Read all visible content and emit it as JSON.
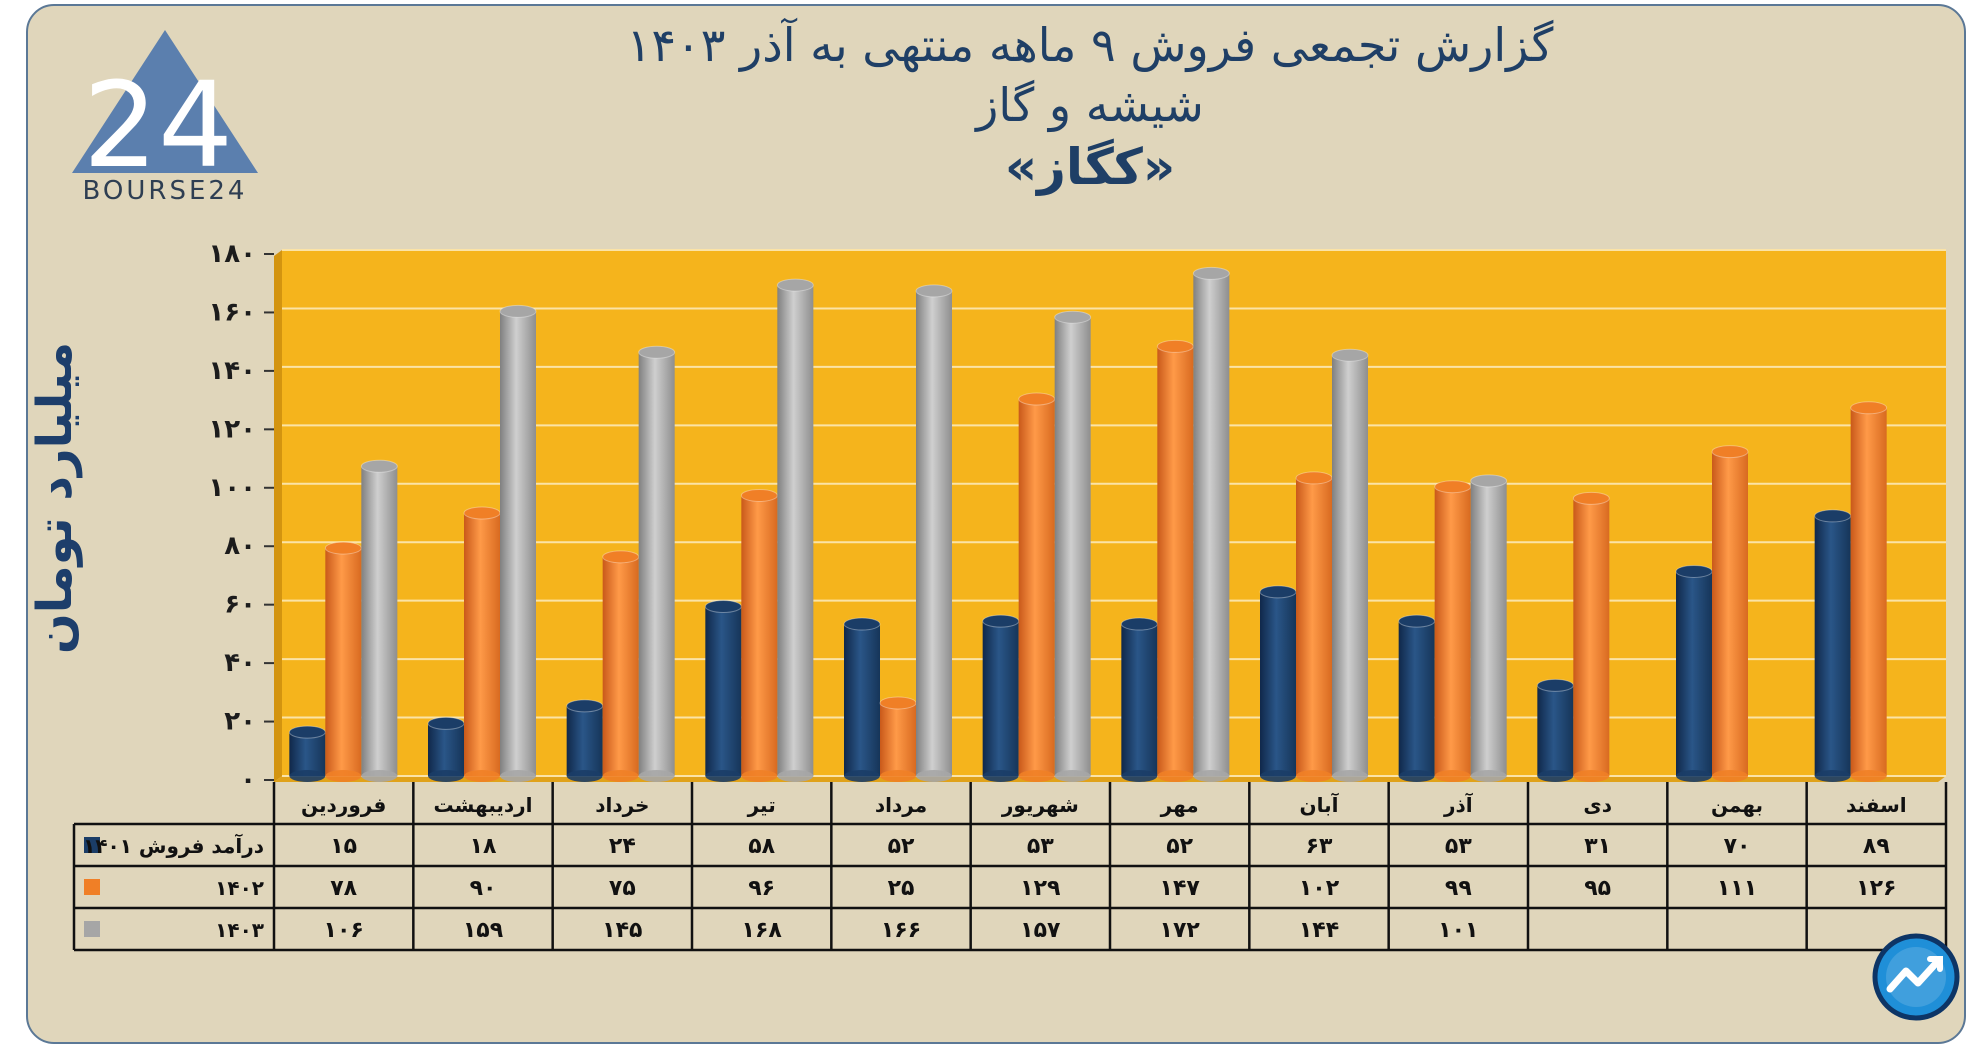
{
  "title": {
    "line1": "گزارش تجمعی فروش ۹ ماهه منتهی به آذر ۱۴۰۳",
    "line2": "شیشه و گاز",
    "line3": "«کگاز»"
  },
  "logo": {
    "text": "BOURSE24",
    "mark": "24"
  },
  "icons": {
    "logo": "bourse24-triangle-logo",
    "brand": "chart-arrow-badge-icon"
  },
  "colors": {
    "background": "#e0d6bb",
    "plot": "#f5b41c",
    "series_1401": "#1b3d67",
    "series_1402": "#f07f26",
    "series_1403": "#a6a6a6"
  },
  "chart_data": {
    "type": "bar",
    "title": "گزارش تجمعی فروش ۹ ماهه منتهی به آذر ۱۴۰۳",
    "ylabel": "میلیارد تومان",
    "ylim": [
      0,
      180
    ],
    "yticks": [
      "۰",
      "۲۰",
      "۴۰",
      "۶۰",
      "۸۰",
      "۱۰۰",
      "۱۲۰",
      "۱۴۰",
      "۱۶۰",
      "۱۸۰"
    ],
    "ytick_values": [
      0,
      20,
      40,
      60,
      80,
      100,
      120,
      140,
      160,
      180
    ],
    "grid": true,
    "categories": [
      "فروردین",
      "اردیبهشت",
      "خرداد",
      "تیر",
      "مرداد",
      "شهریور",
      "مهر",
      "آبان",
      "آذر",
      "دی",
      "بهمن",
      "اسفند"
    ],
    "series": [
      {
        "name": "درآمد فروش ۱۴۰۱",
        "color": "#1b3d67",
        "values": [
          15,
          18,
          24,
          58,
          52,
          53,
          52,
          63,
          53,
          31,
          70,
          89
        ],
        "labels": [
          "۱۵",
          "۱۸",
          "۲۴",
          "۵۸",
          "۵۲",
          "۵۳",
          "۵۲",
          "۶۳",
          "۵۳",
          "۳۱",
          "۷۰",
          "۸۹"
        ]
      },
      {
        "name": "۱۴۰۲",
        "color": "#f07f26",
        "values": [
          78,
          90,
          75,
          96,
          25,
          129,
          147,
          102,
          99,
          95,
          111,
          126
        ],
        "labels": [
          "۷۸",
          "۹۰",
          "۷۵",
          "۹۶",
          "۲۵",
          "۱۲۹",
          "۱۴۷",
          "۱۰۲",
          "۹۹",
          "۹۵",
          "۱۱۱",
          "۱۲۶"
        ]
      },
      {
        "name": "۱۴۰۳",
        "color": "#a6a6a6",
        "values": [
          106,
          159,
          145,
          168,
          166,
          157,
          172,
          144,
          101,
          null,
          null,
          null
        ],
        "labels": [
          "۱۰۶",
          "۱۵۹",
          "۱۴۵",
          "۱۶۸",
          "۱۶۶",
          "۱۵۷",
          "۱۷۲",
          "۱۴۴",
          "۱۰۱",
          "",
          "",
          ""
        ]
      }
    ]
  }
}
